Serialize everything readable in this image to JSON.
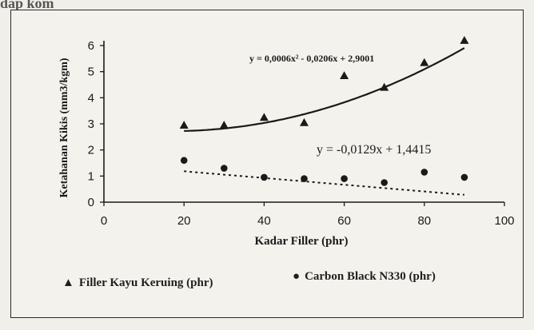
{
  "page_top_text": "dap kom",
  "chart_data": {
    "type": "scatter",
    "xlabel": "Kadar Filler (phr)",
    "ylabel": "Ketahanan Kikis (mm3/kgm)",
    "xlim": [
      0,
      100
    ],
    "ylim": [
      0,
      6
    ],
    "x_ticks": [
      "0",
      "20",
      "40",
      "60",
      "80",
      "100"
    ],
    "y_ticks": [
      "0",
      "1",
      "2",
      "3",
      "4",
      "5",
      "6"
    ],
    "grid": false,
    "legend_position": "bottom",
    "series": [
      {
        "name": "Filler Kayu Keruing (phr)",
        "marker": "triangle",
        "color": "#1a1a1a",
        "x": [
          20,
          30,
          40,
          50,
          60,
          70,
          80,
          90
        ],
        "y": [
          2.95,
          2.95,
          3.25,
          3.05,
          4.85,
          4.4,
          5.35,
          6.2
        ],
        "trendline": {
          "type": "polynomial",
          "coefficients": [
            0.0006,
            -0.0206,
            2.9001
          ],
          "style": "solid",
          "equation": "y = 0,0006x² - 0,0206x + 2,9001"
        }
      },
      {
        "name": "Carbon Black N330 (phr)",
        "marker": "circle",
        "color": "#1a1a1a",
        "x": [
          20,
          30,
          40,
          50,
          60,
          70,
          80,
          90
        ],
        "y": [
          1.6,
          1.3,
          0.95,
          0.9,
          0.9,
          0.75,
          1.15,
          0.95
        ],
        "trendline": {
          "type": "linear",
          "coefficients": [
            -0.0129,
            1.4415
          ],
          "style": "dotted",
          "equation": "y = -0,0129x + 1,4415"
        }
      }
    ]
  }
}
